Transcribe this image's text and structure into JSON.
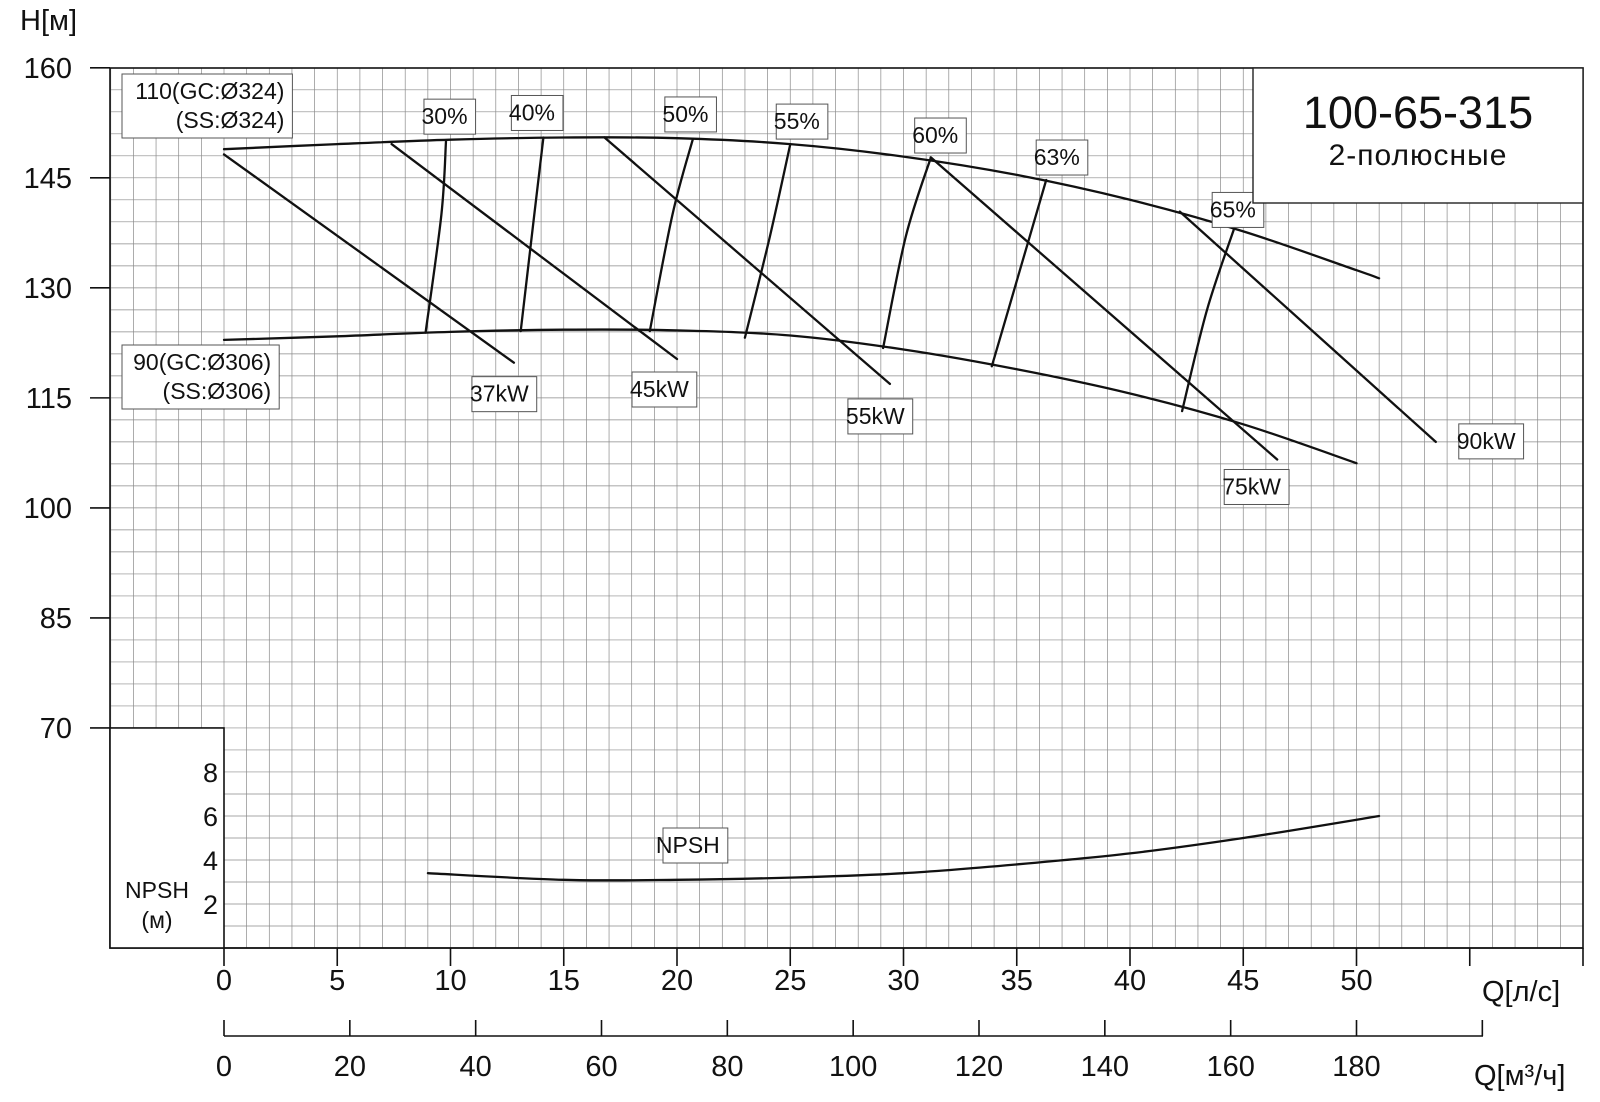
{
  "chart_data": {
    "type": "line",
    "title": "100-65-315",
    "subtitle": "2-полюсные",
    "ylabel": "H[м]",
    "xlabel": "Q[л/с]",
    "xlabel2": "Q[м³/ч]",
    "npsh_label": [
      "NPSH",
      "(м)"
    ],
    "xlim": [
      0,
      55
    ],
    "ylim": [
      70,
      160
    ],
    "grid": true,
    "x_ticks": [
      0,
      5,
      10,
      15,
      20,
      25,
      30,
      35,
      40,
      45,
      50
    ],
    "x2_ticks": [
      0,
      20,
      40,
      60,
      80,
      100,
      120,
      140,
      160,
      180
    ],
    "y_ticks": [
      70,
      85,
      100,
      115,
      130,
      145,
      160
    ],
    "npsh_ticks": [
      2,
      4,
      6,
      8
    ],
    "npsh_range": [
      0,
      10
    ],
    "head_curves": [
      {
        "name": "110(GC:Ø324)\n(SS:Ø324)",
        "label_lines": [
          "110(GC:Ø324)",
          "(SS:Ø324)"
        ],
        "points": [
          [
            0,
            148.9
          ],
          [
            5,
            149.6
          ],
          [
            10,
            150.2
          ],
          [
            15,
            150.5
          ],
          [
            20,
            150.4
          ],
          [
            25,
            149.6
          ],
          [
            30,
            147.9
          ],
          [
            35,
            145.4
          ],
          [
            40,
            142.0
          ],
          [
            45,
            137.7
          ],
          [
            50,
            132.4
          ],
          [
            51,
            131.3
          ]
        ]
      },
      {
        "name": "90(GC:Ø306)\n(SS:Ø306)",
        "label_lines": [
          "90(GC:Ø306)",
          "(SS:Ø306)"
        ],
        "points": [
          [
            0,
            122.9
          ],
          [
            5,
            123.4
          ],
          [
            10,
            124.0
          ],
          [
            15,
            124.3
          ],
          [
            20,
            124.2
          ],
          [
            25,
            123.5
          ],
          [
            30,
            121.6
          ],
          [
            35,
            118.9
          ],
          [
            40,
            115.6
          ],
          [
            45,
            111.4
          ],
          [
            50,
            106.1
          ]
        ]
      }
    ],
    "efficiency_lines": [
      {
        "label": "30%",
        "points": [
          [
            8.9,
            123.9
          ],
          [
            9.6,
            140.0
          ],
          [
            9.8,
            150.0
          ]
        ]
      },
      {
        "label": "40%",
        "points": [
          [
            13.1,
            124.1
          ],
          [
            13.7,
            140.0
          ],
          [
            14.1,
            150.5
          ]
        ]
      },
      {
        "label": "50%",
        "points": [
          [
            18.8,
            124.1
          ],
          [
            19.8,
            140.0
          ],
          [
            20.7,
            150.3
          ]
        ]
      },
      {
        "label": "55%",
        "points": [
          [
            23.0,
            123.2
          ],
          [
            24.1,
            137.0
          ],
          [
            25.0,
            149.6
          ]
        ]
      },
      {
        "label": "60%",
        "points": [
          [
            29.1,
            121.8
          ],
          [
            30.1,
            137.0
          ],
          [
            31.2,
            147.7
          ]
        ]
      },
      {
        "label": "63%",
        "points": [
          [
            33.9,
            119.3
          ],
          [
            35.1,
            132.0
          ],
          [
            36.3,
            144.7
          ]
        ]
      },
      {
        "label": "65%",
        "points": [
          [
            42.3,
            113.2
          ],
          [
            43.4,
            127.0
          ],
          [
            44.6,
            138.1
          ]
        ]
      }
    ],
    "power_lines": [
      {
        "label": "37kW",
        "points": [
          [
            0,
            148.2
          ],
          [
            12.8,
            119.8
          ]
        ]
      },
      {
        "label": "45kW",
        "points": [
          [
            7.4,
            149.6
          ],
          [
            20.0,
            120.3
          ]
        ]
      },
      {
        "label": "55kW",
        "points": [
          [
            16.8,
            150.5
          ],
          [
            29.4,
            116.9
          ]
        ]
      },
      {
        "label": "75kW",
        "points": [
          [
            31.2,
            147.8
          ],
          [
            46.5,
            106.6
          ]
        ]
      },
      {
        "label": "90kW",
        "points": [
          [
            42.2,
            140.4
          ],
          [
            53.5,
            109.0
          ]
        ]
      }
    ],
    "npsh_curve": {
      "name": "NPSH",
      "points": [
        [
          9,
          3.4
        ],
        [
          15,
          3.1
        ],
        [
          20,
          3.1
        ],
        [
          25,
          3.2
        ],
        [
          30,
          3.4
        ],
        [
          35,
          3.8
        ],
        [
          40,
          4.3
        ],
        [
          45,
          5.0
        ],
        [
          51,
          6.0
        ]
      ]
    }
  }
}
